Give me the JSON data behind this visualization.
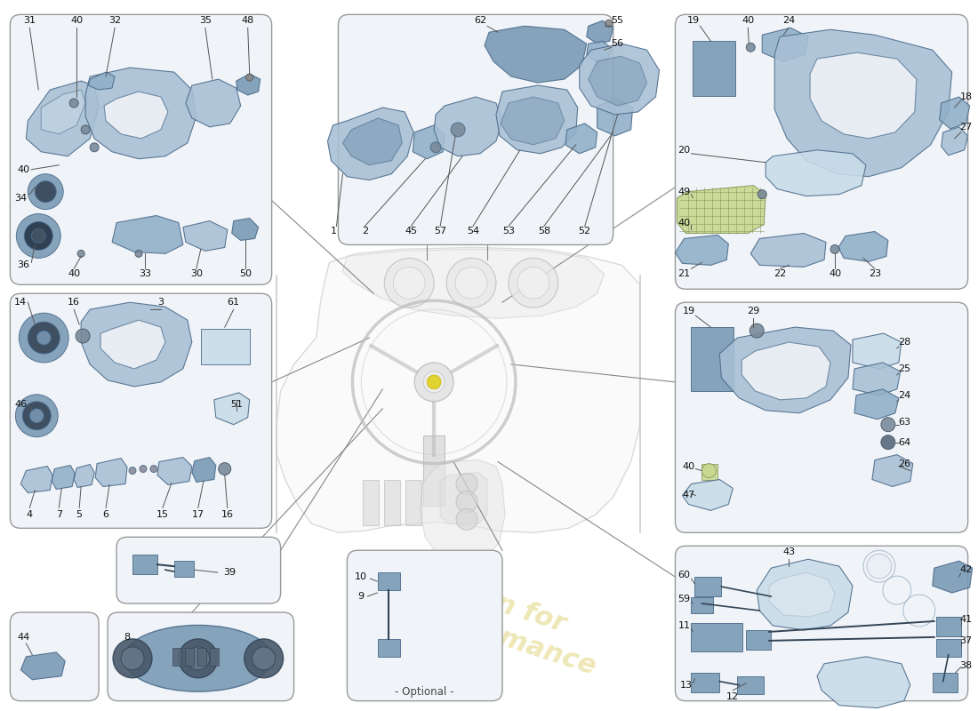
{
  "background_color": "#ffffff",
  "part_color": "#a8bfd4",
  "part_color_light": "#c8dce8",
  "part_color_dark": "#7898b4",
  "part_color_mid": "#90afc8",
  "box_bg": "#f0f4f8",
  "box_border": "#999999",
  "label_color": "#111111",
  "watermark_color": "#ddd070",
  "line_color": "#555555",
  "optional_text": "- Optional -",
  "figsize": [
    11.0,
    8.0
  ],
  "dpi": 100
}
